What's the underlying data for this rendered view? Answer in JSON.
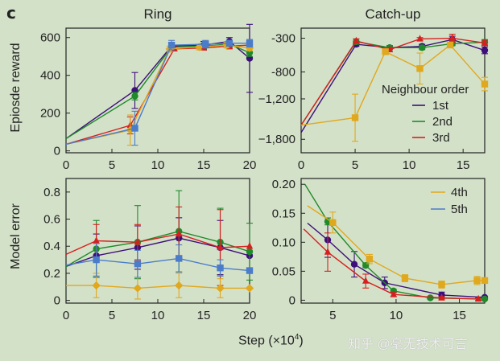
{
  "figure": {
    "panel_label": "c",
    "y_label_top": "Epiosde reward",
    "y_label_bottom": "Model error",
    "x_label": "Step (×10",
    "x_label_sup": "4",
    "x_label_close": ")",
    "watermark": "知乎 @毫无技术可言",
    "legend_title": "Neighbour order",
    "legend": [
      {
        "label": "1st",
        "color": "#3d0f7a"
      },
      {
        "label": "2nd",
        "color": "#1f8a2a"
      },
      {
        "label": "3rd",
        "color": "#d62020"
      },
      {
        "label": "4th",
        "color": "#e0a81c"
      },
      {
        "label": "5th",
        "color": "#4a7cc9"
      }
    ]
  },
  "chart_data": [
    {
      "type": "line",
      "title": "Ring",
      "xlabel": "Step (×10^4)",
      "ylabel": "Epiosde reward",
      "xlim": [
        0,
        20
      ],
      "ylim": [
        -10,
        650
      ],
      "xticks": [
        0,
        5,
        10,
        15,
        20
      ],
      "yticks": [
        0,
        200,
        400,
        600
      ],
      "ytick_labels": [
        "0",
        "200",
        "400",
        "600"
      ],
      "series": [
        {
          "name": "1st",
          "color": "#3d0f7a",
          "marker": "circle",
          "x": [
            0,
            7.5,
            11.5,
            15,
            17.8,
            20
          ],
          "values": [
            65,
            320,
            555,
            560,
            580,
            490
          ],
          "err": [
            0,
            95,
            20,
            20,
            20,
            180
          ]
        },
        {
          "name": "2nd",
          "color": "#1f8a2a",
          "marker": "circle",
          "x": [
            0,
            7.5,
            11.5,
            15,
            17.8,
            20
          ],
          "values": [
            65,
            290,
            550,
            555,
            565,
            520
          ],
          "err": [
            0,
            20,
            15,
            15,
            15,
            20
          ]
        },
        {
          "name": "3rd",
          "color": "#d62020",
          "marker": "triangle",
          "x": [
            0,
            7,
            11.8,
            15,
            17.8,
            20
          ],
          "values": [
            35,
            135,
            540,
            545,
            555,
            560
          ],
          "err": [
            0,
            45,
            10,
            10,
            15,
            15
          ]
        },
        {
          "name": "4th",
          "color": "#e0a81c",
          "marker": "diamond",
          "x": [
            0,
            7,
            11.3,
            14.5,
            17.5,
            20
          ],
          "values": [
            35,
            110,
            540,
            550,
            560,
            545
          ],
          "err": [
            0,
            80,
            15,
            15,
            15,
            15
          ]
        },
        {
          "name": "5th",
          "color": "#4a7cc9",
          "marker": "square",
          "x": [
            0,
            7.5,
            11.5,
            15.2,
            17.8,
            20
          ],
          "values": [
            35,
            120,
            560,
            565,
            570,
            570
          ],
          "err": [
            0,
            90,
            25,
            20,
            15,
            20
          ]
        }
      ]
    },
    {
      "type": "line",
      "title": "Catch-up",
      "xlabel": "Step (×10^4)",
      "ylabel": "Episode reward",
      "xlim": [
        0,
        17
      ],
      "ylim": [
        -2000,
        -150
      ],
      "xticks": [
        0,
        5,
        10,
        15
      ],
      "yticks": [
        -300,
        -800,
        -1200,
        -1800
      ],
      "ytick_labels": [
        "-300",
        "-800",
        "−1,200",
        "−1,800"
      ],
      "series": [
        {
          "name": "1st",
          "color": "#3d0f7a",
          "marker": "circle",
          "x": [
            0,
            5.1,
            8.2,
            11.2,
            14,
            17
          ],
          "values": [
            -1700,
            -390,
            -440,
            -420,
            -320,
            -480
          ],
          "err": [
            0,
            30,
            30,
            30,
            50,
            50
          ]
        },
        {
          "name": "2nd",
          "color": "#1f8a2a",
          "marker": "circle",
          "x": [
            0,
            5.1,
            8.2,
            11.2,
            14,
            17
          ],
          "values": [
            -1590,
            -350,
            -440,
            -440,
            -380,
            -360
          ],
          "err": [
            0,
            40,
            30,
            30,
            30,
            40
          ]
        },
        {
          "name": "3rd",
          "color": "#d62020",
          "marker": "triangle",
          "x": [
            0,
            5.1,
            8.2,
            11,
            14,
            17
          ],
          "values": [
            -1590,
            -340,
            -470,
            -310,
            -300,
            -370
          ],
          "err": [
            0,
            30,
            30,
            20,
            60,
            40
          ]
        },
        {
          "name": "4th",
          "color": "#e0a81c",
          "marker": "square",
          "x": [
            0,
            5,
            7.8,
            11,
            13.8,
            17
          ],
          "values": [
            -1590,
            -1480,
            -500,
            -750,
            -400,
            -980
          ],
          "err": [
            0,
            350,
            40,
            230,
            40,
            100
          ]
        }
      ]
    },
    {
      "type": "line",
      "title": "",
      "xlabel": "Step (×10^4)",
      "ylabel": "Model error",
      "xlim": [
        0,
        20
      ],
      "ylim": [
        -0.02,
        0.9
      ],
      "xticks": [
        0,
        5,
        10,
        15,
        20
      ],
      "yticks": [
        0,
        0.2,
        0.4,
        0.6,
        0.8
      ],
      "ytick_labels": [
        "0",
        "0.2",
        "0.4",
        "0.6",
        "0.8"
      ],
      "series": [
        {
          "name": "1st",
          "color": "#3d0f7a",
          "marker": "circle",
          "x": [
            0,
            3.3,
            7.8,
            12.3,
            16.8,
            20
          ],
          "values": [
            0.25,
            0.33,
            0.39,
            0.46,
            0.39,
            0.33
          ],
          "err": [
            0,
            0.16,
            0.16,
            0.15,
            0.2,
            0
          ]
        },
        {
          "name": "2nd",
          "color": "#1f8a2a",
          "marker": "circle",
          "x": [
            0,
            3.3,
            7.8,
            12.3,
            16.8,
            20
          ],
          "values": [
            0.25,
            0.38,
            0.43,
            0.51,
            0.43,
            0.36
          ],
          "err": [
            0,
            0.21,
            0.27,
            0.3,
            0.25,
            0.21
          ]
        },
        {
          "name": "3rd",
          "color": "#d62020",
          "marker": "triangle",
          "x": [
            0,
            3.3,
            7.8,
            12.3,
            16.8,
            20
          ],
          "values": [
            0.34,
            0.44,
            0.43,
            0.49,
            0.39,
            0.4
          ],
          "err": [
            0,
            0.12,
            0.13,
            0.2,
            0.28,
            0
          ]
        },
        {
          "name": "4th",
          "color": "#e0a81c",
          "marker": "diamond",
          "x": [
            0,
            3.3,
            7.8,
            12.3,
            16.8,
            20
          ],
          "values": [
            0.11,
            0.11,
            0.09,
            0.11,
            0.09,
            0.09
          ],
          "err": [
            0,
            0.09,
            0.08,
            0.09,
            0.07,
            0
          ]
        },
        {
          "name": "5th",
          "color": "#4a7cc9",
          "marker": "square",
          "x": [
            0,
            3.3,
            7.8,
            12.3,
            16.8,
            20
          ],
          "values": [
            0.26,
            0.3,
            0.27,
            0.31,
            0.24,
            0.22
          ],
          "err": [
            0,
            0.12,
            0.1,
            0.1,
            0.06,
            0
          ]
        }
      ]
    },
    {
      "type": "line",
      "title": "",
      "xlabel": "Step (×10^4)",
      "ylabel": "Model error",
      "xlim": [
        2.5,
        17
      ],
      "ylim": [
        -0.005,
        0.21
      ],
      "xticks": [
        5,
        10,
        15
      ],
      "yticks": [
        0,
        0.05,
        0.1,
        0.15,
        0.2
      ],
      "ytick_labels": [
        "0",
        "0.05",
        "0.10",
        "0.15",
        "0.20"
      ],
      "series": [
        {
          "name": "1st",
          "color": "#3d0f7a",
          "marker": "circle",
          "x": [
            3,
            4.6,
            6.7,
            9.1,
            13.6,
            17
          ],
          "values": [
            0.133,
            0.104,
            0.062,
            0.03,
            0.009,
            0.005
          ],
          "err": [
            0,
            0.03,
            0.022,
            0.01,
            0.005,
            0
          ]
        },
        {
          "name": "2nd",
          "color": "#1f8a2a",
          "marker": "circle",
          "x": [
            2.8,
            4.6,
            7.6,
            9.8,
            12.7,
            17
          ],
          "values": [
            0.2,
            0.136,
            0.06,
            0.016,
            0.004,
            0.002
          ],
          "err": [
            0,
            0.006,
            0.004,
            0.003,
            0.002,
            0
          ]
        },
        {
          "name": "3rd",
          "color": "#d62020",
          "marker": "triangle",
          "x": [
            2.7,
            4.6,
            7.6,
            9.8,
            13.6,
            16.5
          ],
          "values": [
            0.123,
            0.083,
            0.033,
            0.01,
            0.004,
            0.002
          ],
          "err": [
            0,
            0.033,
            0.012,
            0.004,
            0.002,
            0.002
          ]
        },
        {
          "name": "4th",
          "color": "#e0a81c",
          "marker": "square",
          "x": [
            3,
            5,
            7.9,
            10.7,
            13.6,
            16.4,
            17
          ],
          "values": [
            0.163,
            0.134,
            0.071,
            0.038,
            0.027,
            0.034,
            0.034
          ],
          "err": [
            0,
            0.018,
            0.008,
            0.006,
            0.006,
            0.007,
            0
          ]
        }
      ]
    }
  ]
}
